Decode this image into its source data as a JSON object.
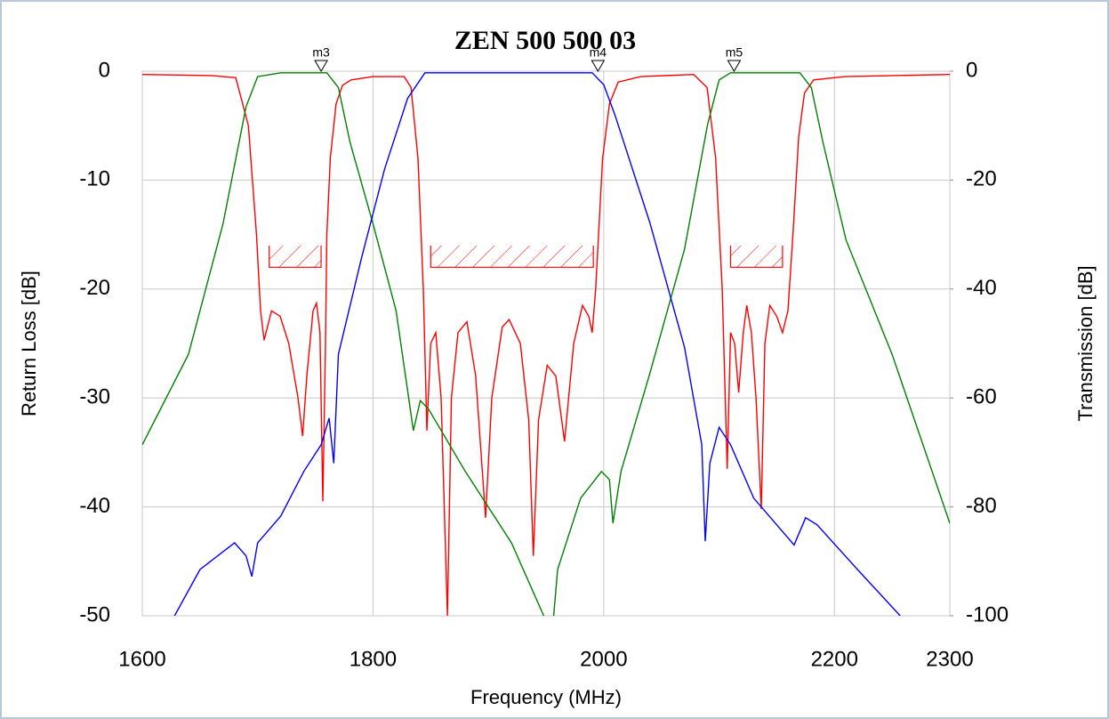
{
  "chart_data": {
    "type": "line",
    "title": "ZEN 500 500 03",
    "xlabel": "Frequency (MHz)",
    "ylabel": "Return Loss [dB]",
    "y2label": "Transmission [dB]",
    "xlim": [
      1600,
      2300
    ],
    "xticks": [
      1600,
      1800,
      2000,
      2200,
      2300
    ],
    "ylim": [
      -50,
      0
    ],
    "yticks": [
      -50,
      -40,
      -30,
      -20,
      -10,
      0
    ],
    "y2lim": [
      -100,
      0
    ],
    "y2ticks": [
      -100,
      -80,
      -60,
      -40,
      -20,
      0
    ],
    "grid": true,
    "series": [
      {
        "color": "#ff0000",
        "x": [
          1600,
          1660,
          1681,
          1692,
          1699,
          1702.5,
          1705.6,
          1712,
          1719.5,
          1727,
          1735,
          1739,
          1742.6,
          1748,
          1751,
          1754,
          1756.5,
          1758.8,
          1760,
          1763,
          1768,
          1773.5,
          1781,
          1800,
          1827,
          1833,
          1839,
          1843.6,
          1846.7,
          1850,
          1854.4,
          1859,
          1864.5,
          1868,
          1873.7,
          1881.4,
          1889,
          1897.6,
          1903,
          1912,
          1918,
          1927.7,
          1935,
          1939,
          1943.5,
          1951,
          1958.5,
          1966,
          1974,
          1981.6,
          1987,
          1990,
          1993,
          1999,
          2005,
          2012.5,
          2032,
          2078,
          2089.6,
          2097,
          2102.7,
          2107,
          2110,
          2113.5,
          2117,
          2121,
          2124,
          2128,
          2132,
          2136.6,
          2139.7,
          2144,
          2150,
          2155,
          2159.7,
          2164,
          2169,
          2174,
          2182,
          2209,
          2300
        ],
        "values": [
          -0.3,
          -0.4,
          -0.6,
          -5,
          -15,
          -22,
          -24.7,
          -22,
          -22.5,
          -25,
          -30,
          -33.5,
          -28,
          -22,
          -21.3,
          -24,
          -39.5,
          -25,
          -15,
          -8,
          -3,
          -1.3,
          -0.8,
          -0.5,
          -0.5,
          -1.5,
          -8,
          -20,
          -33,
          -25,
          -24,
          -30,
          -50,
          -30,
          -24,
          -23,
          -28,
          -41,
          -30,
          -23.5,
          -22.8,
          -25,
          -32,
          -44.5,
          -32,
          -27,
          -28,
          -34,
          -25,
          -21.5,
          -22.5,
          -24,
          -20,
          -8,
          -3,
          -1,
          -0.5,
          -0.3,
          -1.5,
          -8,
          -20,
          -36.5,
          -24,
          -25,
          -29.5,
          -24,
          -21.5,
          -24,
          -30,
          -40.2,
          -25,
          -21.5,
          -22.5,
          -24,
          -22,
          -15,
          -6,
          -2,
          -0.8,
          -0.5,
          -0.3
        ]
      },
      {
        "color": "#008000",
        "axis": "y2",
        "x": [
          1600,
          1640,
          1670,
          1690,
          1700,
          1720,
          1760,
          1770,
          1780,
          1800,
          1820,
          1835,
          1841,
          1848,
          1880,
          1920,
          1948,
          1950,
          1955,
          1960,
          1980,
          1998,
          2005,
          2008,
          2015,
          2040,
          2070,
          2090,
          2100,
          2110,
          2170,
          2180,
          2190,
          2210,
          2250,
          2300
        ],
        "values": [
          -68.6,
          -52,
          -28,
          -6.5,
          -1,
          -0.3,
          -0.3,
          -3,
          -13,
          -28,
          -44,
          -66,
          -60.5,
          -62,
          -73.5,
          -86.6,
          -100,
          -106,
          -104,
          -91.5,
          -78.4,
          -73.5,
          -75,
          -83,
          -73.5,
          -55.5,
          -32.7,
          -9.8,
          -1.6,
          -0.3,
          -0.3,
          -3,
          -13,
          -31,
          -52,
          -83
        ]
      },
      {
        "color": "#0000ff",
        "axis": "y2",
        "x": [
          1628,
          1650,
          1680,
          1690,
          1695,
          1700,
          1720,
          1740,
          1755,
          1762,
          1766,
          1770,
          1790,
          1810,
          1830,
          1845,
          1990,
          2000,
          2010,
          2040,
          2070,
          2085,
          2088,
          2092,
          2100,
          2110,
          2130,
          2150,
          2165,
          2175,
          2185,
          2220,
          2257
        ],
        "values": [
          -100,
          -91.5,
          -86.6,
          -89,
          -92.8,
          -86.6,
          -81.7,
          -73.5,
          -68.6,
          -63.7,
          -72,
          -52,
          -34.3,
          -18,
          -5,
          -0.3,
          -0.3,
          -2.5,
          -8.2,
          -27.8,
          -50.7,
          -68.6,
          -86.3,
          -72,
          -65.4,
          -68.6,
          -78.4,
          -83.3,
          -87,
          -82,
          -83.3,
          -91.5,
          -100
        ]
      }
    ],
    "markers": [
      {
        "label": "m3",
        "x": 1755,
        "y": 0
      },
      {
        "label": "m4",
        "x": 1995,
        "y": 0
      },
      {
        "label": "m5",
        "x": 2113,
        "y": 0
      }
    ],
    "masks": [
      {
        "x0": 1710,
        "x1": 1755,
        "y_top": -16,
        "y_bottom": -18
      },
      {
        "x0": 1850,
        "x1": 1991,
        "y_top": -16,
        "y_bottom": -18
      },
      {
        "x0": 2110,
        "x1": 2155,
        "y_top": -16,
        "y_bottom": -18
      }
    ]
  }
}
